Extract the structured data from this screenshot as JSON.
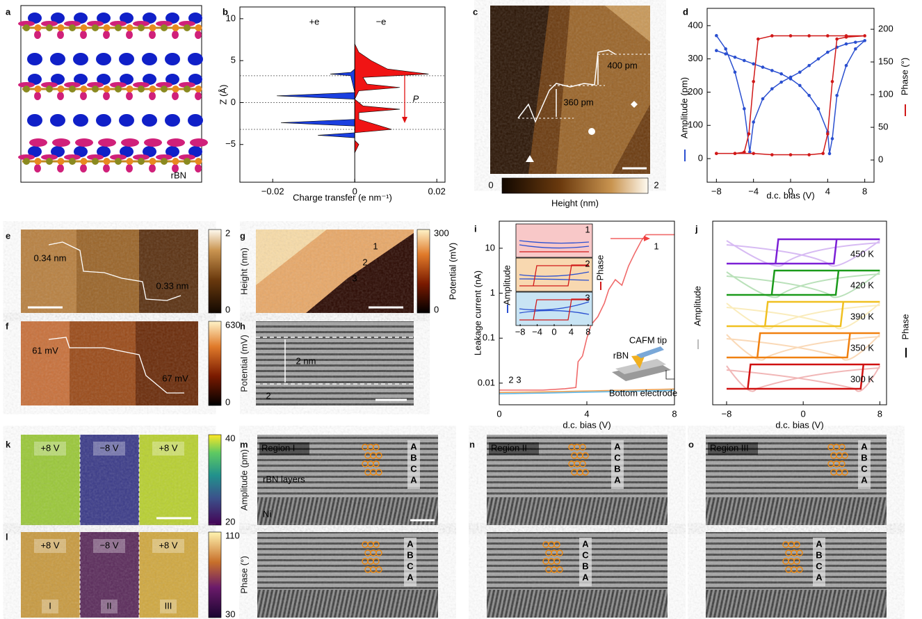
{
  "panels": {
    "a": {
      "label": "a",
      "text": "rBN"
    },
    "c": {
      "label": "c",
      "annotations": [
        "400 pm",
        "360 pm"
      ],
      "colorbar": {
        "min": 0,
        "max": 2,
        "title": "Height (nm)"
      }
    },
    "e": {
      "label": "e",
      "annotations": [
        "0.34 nm",
        "0.33 nm"
      ],
      "colorbar": {
        "min": 0,
        "max": 2,
        "title": "Height (nm)"
      }
    },
    "f": {
      "label": "f",
      "annotations": [
        "61 mV",
        "67 mV"
      ],
      "colorbar": {
        "min": 0,
        "max": 630,
        "title": "Potential (mV)"
      }
    },
    "g": {
      "label": "g",
      "annotations": [
        "1",
        "2",
        "3"
      ],
      "colorbar": {
        "min": 0,
        "max": 300,
        "title": "Potential (mV)"
      }
    },
    "h": {
      "label": "h",
      "annotations": [
        "2 nm",
        "2"
      ]
    },
    "k": {
      "label": "k",
      "regions": [
        "+8 V",
        "−8 V",
        "+8 V"
      ],
      "colorbar": {
        "min": 20,
        "max": 40,
        "title": "Amplitude (pm)"
      }
    },
    "l": {
      "label": "l",
      "regions": [
        "+8 V",
        "−8 V",
        "+8 V"
      ],
      "domains": [
        "I",
        "II",
        "III"
      ],
      "colorbar": {
        "min": 30,
        "max": 110,
        "title": "Phase (°)"
      }
    },
    "m": {
      "label": "m",
      "title": "Region I",
      "annotations": [
        "rBN layers",
        "Ni"
      ],
      "stacking_top": [
        "A",
        "B",
        "C",
        "A"
      ],
      "stacking_bottom": [
        "A",
        "B",
        "C",
        "A"
      ]
    },
    "n": {
      "label": "n",
      "title": "Region II",
      "stacking_top": [
        "A",
        "C",
        "B",
        "A"
      ],
      "stacking_bottom": [
        "A",
        "C",
        "B",
        "A"
      ]
    },
    "o": {
      "label": "o",
      "title": "Region III",
      "stacking_top": [
        "A",
        "B",
        "C",
        "A"
      ],
      "stacking_bottom": [
        "A",
        "B",
        "C",
        "A"
      ]
    }
  },
  "chart_data": [
    {
      "panel": "b",
      "type": "area",
      "xlabel": "Charge transfer (e nm⁻¹)",
      "ylabel": "Z (Å)",
      "xlim": [
        -0.028,
        0.022
      ],
      "ylim": [
        -9.5,
        11.4
      ],
      "xticks": [
        {
          "value": -0.02,
          "label": "−0.02"
        },
        0,
        0.02
      ],
      "yticks": [
        {
          "value": -5,
          "label": "−5"
        },
        0,
        5,
        10
      ],
      "reference_lines": [
        3.2,
        0,
        -3.2
      ],
      "annotation": "P",
      "series": [
        {
          "name": "+e",
          "color": "#1b3fe0",
          "z": [
            6,
            4,
            3.6,
            3.4,
            3.2,
            1.2,
            0.8,
            0.4,
            -2.0,
            -2.4,
            -2.8,
            -3.6,
            -3.9,
            -4.2,
            -6
          ],
          "values": [
            0,
            0,
            -0.001,
            -0.006,
            -0.001,
            0,
            -0.019,
            0,
            0,
            -0.018,
            0,
            0,
            -0.009,
            0,
            0
          ]
        },
        {
          "name": "−e",
          "color": "#f01414",
          "z": [
            7,
            6,
            5,
            4,
            3.4,
            3.0,
            2.2,
            1.8,
            1.4,
            0.4,
            -0.4,
            -0.8,
            -1.2,
            -2.0,
            -3.2,
            -3.6,
            -4.5,
            -5,
            -6
          ],
          "values": [
            0,
            0.001,
            0.004,
            0.008,
            0.018,
            0.002,
            0.003,
            0.011,
            0.001,
            0,
            0.002,
            0.011,
            0.001,
            0.001,
            0.009,
            0,
            0,
            0.001,
            0
          ]
        }
      ]
    },
    {
      "panel": "d",
      "type": "line",
      "xlabel": "d.c. bias (V)",
      "ylabel": "Amplitude (pm)",
      "y2label": "Phase (°)",
      "xlim": [
        -9,
        9
      ],
      "ylim": [
        -71,
        452
      ],
      "y2lim": [
        -34,
        232
      ],
      "xticks": [
        {
          "value": -8,
          "label": "−8"
        },
        {
          "value": -4,
          "label": "−4"
        },
        0,
        4,
        8
      ],
      "yticks": [
        0,
        100,
        200,
        300,
        400
      ],
      "y2ticks": [
        0,
        50,
        100,
        150,
        200
      ],
      "series": [
        {
          "color": "#2a4fd0",
          "x": [
            -8,
            -7,
            -6,
            -5,
            -4.4,
            -4,
            -3,
            -2,
            -1,
            0,
            1,
            2,
            3,
            4,
            5,
            6,
            7,
            8,
            7,
            6,
            5,
            4.5,
            4.2,
            4,
            3,
            2,
            1,
            0,
            -1,
            -2,
            -3,
            -4,
            -5,
            -6,
            -7,
            -8
          ],
          "values": [
            370,
            330,
            260,
            150,
            20,
            110,
            180,
            210,
            230,
            245,
            260,
            280,
            300,
            320,
            335,
            345,
            350,
            355,
            330,
            280,
            190,
            60,
            15,
            80,
            150,
            190,
            220,
            240,
            255,
            265,
            275,
            285,
            295,
            305,
            315,
            325
          ]
        },
        {
          "color": "#d01818",
          "axis": "y2",
          "x": [
            -8,
            -6,
            -4,
            -2,
            0,
            2,
            3.5,
            4,
            4.5,
            5,
            6,
            8,
            6,
            4,
            2,
            0,
            -2,
            -3.5,
            -4,
            -4.5,
            -5,
            -6,
            -8
          ],
          "values": [
            10,
            10,
            10,
            8,
            8,
            8,
            10,
            40,
            120,
            185,
            188,
            190,
            190,
            190,
            190,
            190,
            190,
            185,
            120,
            40,
            12,
            10,
            10
          ]
        }
      ]
    },
    {
      "panel": "i",
      "type": "line",
      "log_y": true,
      "xlabel": "d.c. bias (V)",
      "ylabel": "Leakage current (nA)",
      "xlim": [
        0,
        8
      ],
      "ylim": [
        0.0033,
        40
      ],
      "xticks": [
        0,
        4,
        8
      ],
      "yticks": [
        0.01,
        0.1,
        1,
        10
      ],
      "series": [
        {
          "name": "1",
          "color": "#f06a6a",
          "x": [
            0,
            1,
            2,
            3,
            3.5,
            3.6,
            3.8,
            4,
            4.2,
            4.5,
            4.8,
            5,
            5.3,
            5.6,
            5.9,
            6.2,
            6.5,
            6.7,
            7,
            8
          ],
          "values": [
            0.007,
            0.007,
            0.007,
            0.0075,
            0.008,
            0.03,
            0.04,
            0.1,
            0.2,
            0.3,
            0.6,
            1.2,
            2,
            1.5,
            4,
            8,
            15,
            20,
            20,
            20
          ]
        },
        {
          "name": "2",
          "color": "#f0a050",
          "x": [
            0,
            2,
            4,
            6,
            8
          ],
          "values": [
            0.0062,
            0.0064,
            0.0067,
            0.007,
            0.0074
          ]
        },
        {
          "name": "3",
          "color": "#60b8e8",
          "x": [
            0,
            2,
            4,
            6,
            8
          ],
          "values": [
            0.0058,
            0.006,
            0.0063,
            0.0066,
            0.0069
          ]
        }
      ],
      "inset": {
        "ylabel": "Amplitude",
        "y2label": "Phase",
        "labels": [
          "1",
          "2",
          "3"
        ],
        "xticks": [
          {
            "value": -8,
            "label": "−8"
          },
          {
            "value": -4,
            "label": "−4"
          },
          0,
          4,
          8
        ]
      },
      "schematic": [
        "CAFM tip",
        "rBN",
        "Bottom electrode"
      ]
    },
    {
      "panel": "j",
      "type": "hysteresis",
      "xlabel": "d.c. bias (V)",
      "ylabel": "Amplitude",
      "y2label": "Phase",
      "xlim": [
        -9.45,
        8.7
      ],
      "xticks": [
        {
          "value": -8,
          "label": "−8"
        },
        0,
        8
      ],
      "series": [
        {
          "name": "450 K",
          "color": "#7b1fd6",
          "coercive": [
            -2.6,
            3.2
          ]
        },
        {
          "name": "420 K",
          "color": "#1a9a1a",
          "coercive": [
            -3.0,
            3.4
          ]
        },
        {
          "name": "390 K",
          "color": "#f0c020",
          "coercive": [
            -3.7,
            3.9
          ]
        },
        {
          "name": "350 K",
          "color": "#f08010",
          "coercive": [
            -4.5,
            4.6
          ]
        },
        {
          "name": "300 K",
          "color": "#d01010",
          "coercive": [
            -5.5,
            6.0
          ]
        }
      ]
    }
  ]
}
